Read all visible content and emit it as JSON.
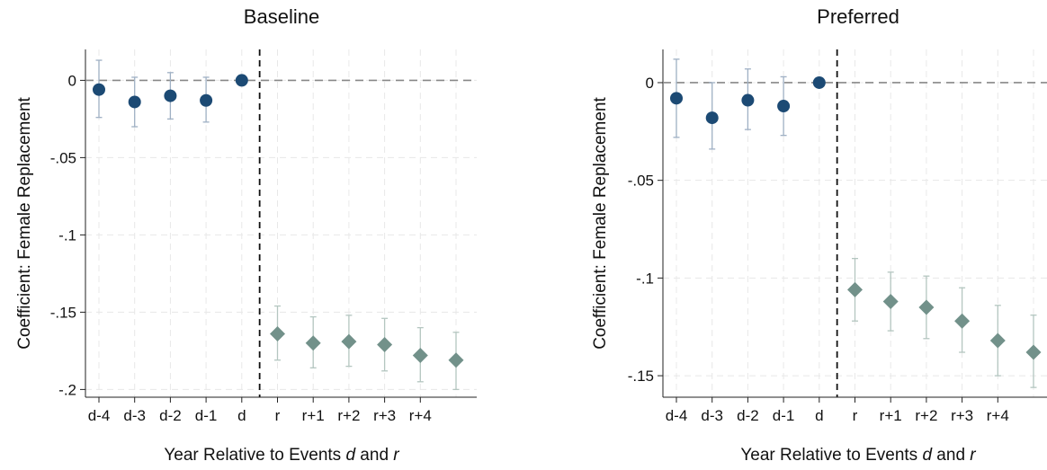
{
  "chart_data": [
    {
      "type": "scatter",
      "title": "Baseline",
      "xlabel": "Year Relative to Events d and r",
      "xlabel_parts": {
        "prefix": "Year Relative to Events ",
        "d": "d",
        "mid": " and ",
        "r": "r"
      },
      "ylabel": "Coefficient: Female Replacement",
      "ylim": [
        -0.205,
        0.02
      ],
      "yticks": [
        0,
        -0.05,
        -0.1,
        -0.15,
        -0.2
      ],
      "ytick_labels": [
        "0",
        "-.05",
        "-.1",
        "-.15",
        "-.2"
      ],
      "categories": [
        "d-4",
        "d-3",
        "d-2",
        "d-1",
        "d",
        "r",
        "r+1",
        "r+2",
        "r+3",
        "r+4",
        ""
      ],
      "event_line_between": [
        "d",
        "r"
      ],
      "grid": true,
      "series": [
        {
          "marker": "circle",
          "color": "#1c4a74",
          "points": [
            {
              "x": "d-4",
              "y": -0.006,
              "ci": [
                -0.024,
                0.013
              ]
            },
            {
              "x": "d-3",
              "y": -0.014,
              "ci": [
                -0.03,
                0.002
              ]
            },
            {
              "x": "d-2",
              "y": -0.01,
              "ci": [
                -0.025,
                0.005
              ]
            },
            {
              "x": "d-1",
              "y": -0.013,
              "ci": [
                -0.027,
                0.002
              ]
            },
            {
              "x": "d",
              "y": 0.0,
              "ci": null
            }
          ]
        },
        {
          "marker": "diamond",
          "color": "#72918a",
          "points": [
            {
              "x": "r",
              "y": -0.164,
              "ci": [
                -0.181,
                -0.146
              ]
            },
            {
              "x": "r+1",
              "y": -0.17,
              "ci": [
                -0.186,
                -0.153
              ]
            },
            {
              "x": "r+2",
              "y": -0.169,
              "ci": [
                -0.185,
                -0.152
              ]
            },
            {
              "x": "r+3",
              "y": -0.171,
              "ci": [
                -0.188,
                -0.154
              ]
            },
            {
              "x": "r+4",
              "y": -0.178,
              "ci": [
                -0.195,
                -0.16
              ]
            },
            {
              "x": "",
              "y": -0.181,
              "ci": [
                -0.2,
                -0.163
              ]
            }
          ]
        }
      ]
    },
    {
      "type": "scatter",
      "title": "Preferred",
      "xlabel": "Year Relative to Events d and r",
      "xlabel_parts": {
        "prefix": "Year Relative to Events ",
        "d": "d",
        "mid": " and ",
        "r": "r"
      },
      "ylabel": "Coefficient: Female Replacement",
      "ylim": [
        -0.161,
        0.017
      ],
      "yticks": [
        0,
        -0.05,
        -0.1,
        -0.15
      ],
      "ytick_labels": [
        "0",
        "-.05",
        "-.1",
        "-.15"
      ],
      "categories": [
        "d-4",
        "d-3",
        "d-2",
        "d-1",
        "d",
        "r",
        "r+1",
        "r+2",
        "r+3",
        "r+4",
        ""
      ],
      "event_line_between": [
        "d",
        "r"
      ],
      "grid": true,
      "series": [
        {
          "marker": "circle",
          "color": "#1c4a74",
          "points": [
            {
              "x": "d-4",
              "y": -0.008,
              "ci": [
                -0.028,
                0.012
              ]
            },
            {
              "x": "d-3",
              "y": -0.018,
              "ci": [
                -0.034,
                0.0
              ]
            },
            {
              "x": "d-2",
              "y": -0.009,
              "ci": [
                -0.024,
                0.007
              ]
            },
            {
              "x": "d-1",
              "y": -0.012,
              "ci": [
                -0.027,
                0.003
              ]
            },
            {
              "x": "d",
              "y": 0.0,
              "ci": null
            }
          ]
        },
        {
          "marker": "diamond",
          "color": "#72918a",
          "points": [
            {
              "x": "r",
              "y": -0.106,
              "ci": [
                -0.122,
                -0.09
              ]
            },
            {
              "x": "r+1",
              "y": -0.112,
              "ci": [
                -0.127,
                -0.097
              ]
            },
            {
              "x": "r+2",
              "y": -0.115,
              "ci": [
                -0.131,
                -0.099
              ]
            },
            {
              "x": "r+3",
              "y": -0.122,
              "ci": [
                -0.138,
                -0.105
              ]
            },
            {
              "x": "r+4",
              "y": -0.132,
              "ci": [
                -0.15,
                -0.114
              ]
            },
            {
              "x": "",
              "y": -0.138,
              "ci": [
                -0.156,
                -0.119
              ]
            }
          ]
        }
      ]
    }
  ]
}
